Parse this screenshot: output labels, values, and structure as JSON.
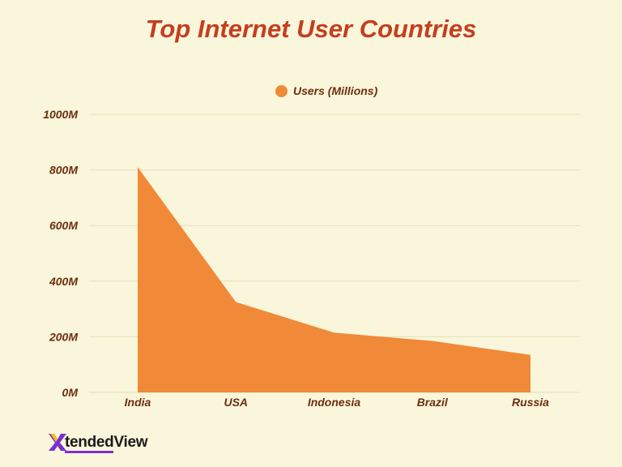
{
  "colors": {
    "background": "#faf6dc",
    "title": "#c53e1f",
    "area": "#f08a38",
    "grid": "#e6dfb5",
    "label": "#6e2e0e",
    "logo_accent": "#7a2fd0",
    "logo_yellow": "#f2c200"
  },
  "logo": {
    "part1": "tended",
    "part2": "View"
  },
  "chart_data": {
    "type": "area",
    "title": "Top Internet User Countries",
    "categories": [
      "India",
      "USA",
      "Indonesia",
      "Brazil",
      "Russia"
    ],
    "series": [
      {
        "name": "Users (Millions)",
        "values": [
          810,
          325,
          215,
          185,
          135
        ]
      }
    ],
    "ylim": [
      0,
      1000
    ],
    "yticks": [
      0,
      200,
      400,
      600,
      800,
      1000
    ],
    "ytick_labels": [
      "0M",
      "200M",
      "400M",
      "600M",
      "800M",
      "1000M"
    ],
    "xlabel": "",
    "ylabel": "",
    "grid": true,
    "legend": "top-center"
  }
}
